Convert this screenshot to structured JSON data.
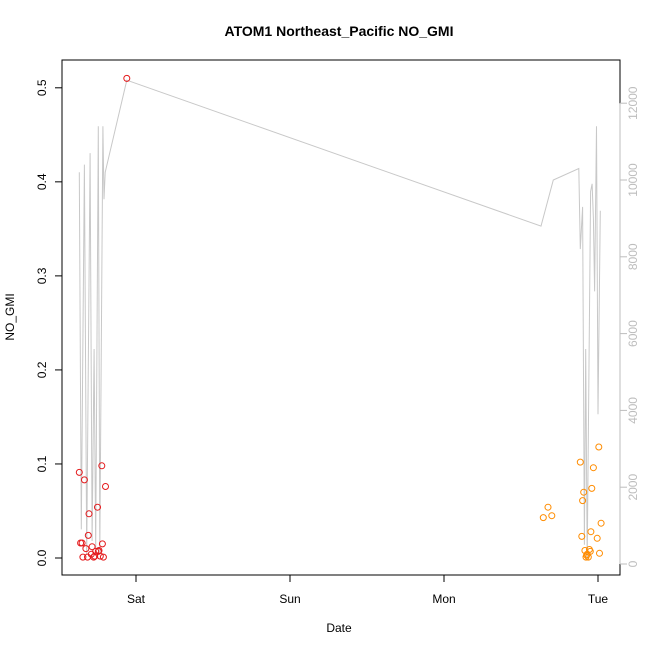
{
  "chart_data": {
    "type": "scatter",
    "title": "ATOM1 Northeast_Pacific NO_GMI",
    "xlabel": "Date",
    "ylabel": "NO_GMI",
    "x_ticks": [
      "Sat",
      "Sun",
      "Mon",
      "Tue"
    ],
    "y_ticks": [
      "0.0",
      "0.1",
      "0.2",
      "0.3",
      "0.4",
      "0.5"
    ],
    "y2_ticks": [
      "0",
      "2000",
      "4000",
      "6000",
      "8000",
      "10000",
      "12000"
    ],
    "ylim": [
      0,
      0.51
    ],
    "y2lim": [
      0,
      12000
    ],
    "colors": {
      "series1": "#e41a1c",
      "series2": "#ff8c00",
      "altitude": "#c8c8c8",
      "axis": "#000000",
      "right_axis": "#bdbdbd"
    },
    "series": [
      {
        "values": [
          [
            -0.368,
            0.091
          ],
          [
            -0.36,
            0.016
          ],
          [
            -0.35,
            0.016
          ],
          [
            -0.345,
            0.001
          ],
          [
            -0.335,
            0.083
          ],
          [
            -0.325,
            0.01
          ],
          [
            -0.315,
            0.001
          ],
          [
            -0.31,
            0.024
          ],
          [
            -0.305,
            0.047
          ],
          [
            -0.29,
            0.004
          ],
          [
            -0.285,
            0.012
          ],
          [
            -0.275,
            0.001
          ],
          [
            -0.268,
            0.002
          ],
          [
            -0.262,
            0.007
          ],
          [
            -0.25,
            0.054
          ],
          [
            -0.245,
            0.007
          ],
          [
            -0.24,
            0.008
          ],
          [
            -0.232,
            0.002
          ],
          [
            -0.222,
            0.098
          ],
          [
            -0.218,
            0.015
          ],
          [
            -0.212,
            0.001
          ],
          [
            -0.198,
            0.076
          ],
          [
            -0.06,
            0.51
          ]
        ]
      },
      {
        "values": [
          [
            2.645,
            0.043
          ],
          [
            2.675,
            0.054
          ],
          [
            2.7,
            0.045
          ],
          [
            2.885,
            0.102
          ],
          [
            2.895,
            0.023
          ],
          [
            2.9,
            0.061
          ],
          [
            2.907,
            0.07
          ],
          [
            2.915,
            0.008
          ],
          [
            2.922,
            0.001
          ],
          [
            2.926,
            0.003
          ],
          [
            2.93,
            0.004
          ],
          [
            2.937,
            0.001
          ],
          [
            2.944,
            0.009
          ],
          [
            2.95,
            0.007
          ],
          [
            2.954,
            0.028
          ],
          [
            2.96,
            0.074
          ],
          [
            2.97,
            0.096
          ],
          [
            2.995,
            0.021
          ],
          [
            3.005,
            0.118
          ],
          [
            3.01,
            0.005
          ],
          [
            3.02,
            0.037
          ]
        ]
      }
    ],
    "altitude_line": [
      [
        -0.368,
        10200
      ],
      [
        -0.355,
        900
      ],
      [
        -0.335,
        10400
      ],
      [
        -0.32,
        250
      ],
      [
        -0.298,
        10700
      ],
      [
        -0.285,
        600
      ],
      [
        -0.272,
        5600
      ],
      [
        -0.262,
        400
      ],
      [
        -0.245,
        11400
      ],
      [
        -0.235,
        300
      ],
      [
        -0.215,
        11400
      ],
      [
        -0.208,
        9500
      ],
      [
        -0.2,
        10200
      ],
      [
        -0.06,
        12600
      ],
      [
        2.63,
        8800
      ],
      [
        2.71,
        10000
      ],
      [
        2.875,
        10300
      ],
      [
        2.885,
        8200
      ],
      [
        2.9,
        9300
      ],
      [
        2.912,
        500
      ],
      [
        2.92,
        5600
      ],
      [
        2.93,
        100
      ],
      [
        2.952,
        9700
      ],
      [
        2.962,
        9900
      ],
      [
        2.97,
        9000
      ],
      [
        2.978,
        7100
      ],
      [
        2.99,
        11400
      ],
      [
        3.0,
        3900
      ],
      [
        3.015,
        9200
      ]
    ]
  }
}
